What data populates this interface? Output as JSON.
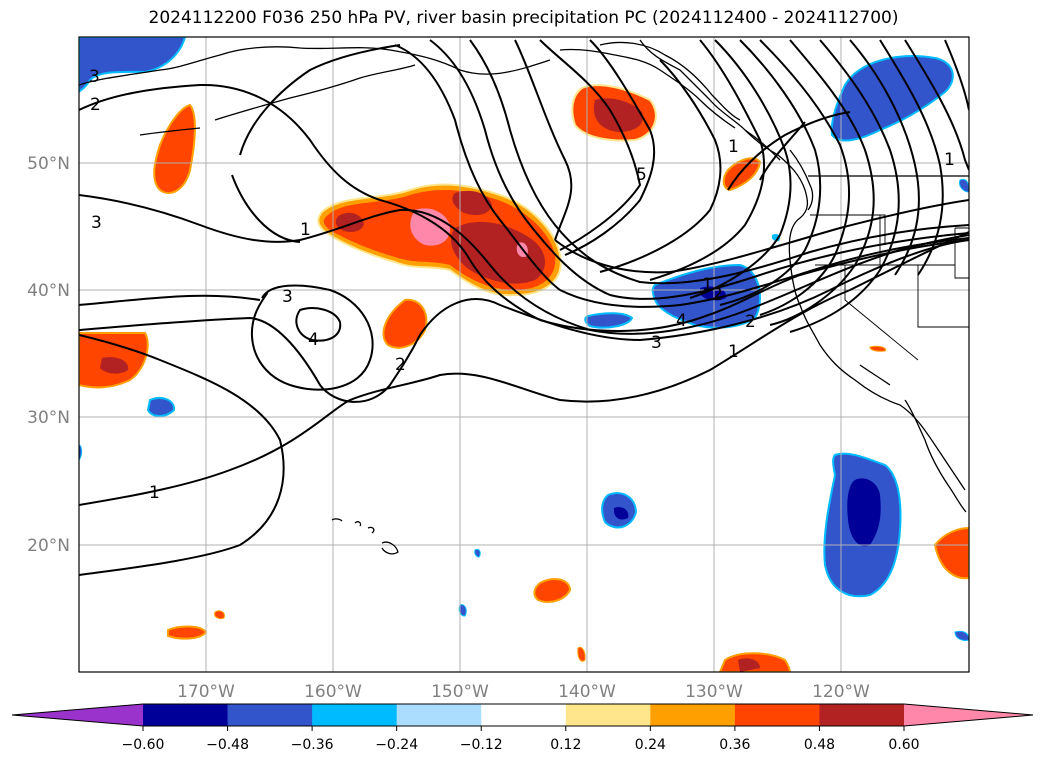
{
  "title": "2024112200 F036 250 hPa PV, river basin precipitation PC (2024112400 - 2024112700)",
  "map": {
    "lat_labels": [
      "50°N",
      "40°N",
      "30°N",
      "20°N"
    ],
    "lon_labels": [
      "170°W",
      "160°W",
      "150°W",
      "140°W",
      "130°W",
      "120°W"
    ],
    "contour_labels": [
      "3",
      "2",
      "3",
      "1",
      "3",
      "4",
      "2",
      "5",
      "1",
      "1",
      "2",
      "3",
      "4",
      "1",
      "1",
      "2",
      "1"
    ]
  },
  "colorbar": {
    "colors": [
      "#9933cc",
      "#000099",
      "#3355cc",
      "#00bbff",
      "#aaddff",
      "#ffffff",
      "#ffe68c",
      "#ffa000",
      "#ff4500",
      "#b22222",
      "#ff88aa"
    ],
    "tick_labels": [
      "−0.60",
      "−0.48",
      "−0.36",
      "−0.24",
      "−0.12",
      "0.12",
      "0.24",
      "0.36",
      "0.48",
      "0.60"
    ]
  },
  "colors": {
    "grid": "#b0b0b0",
    "contour": "#000000",
    "coast": "#000000"
  }
}
